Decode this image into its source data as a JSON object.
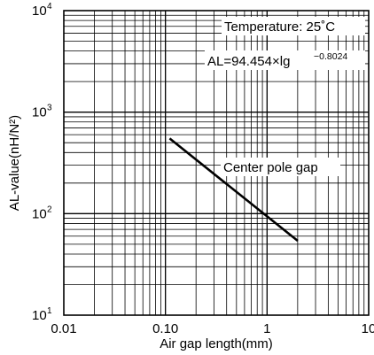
{
  "chart_data": {
    "type": "line",
    "xlabel": "Air gap length(mm)",
    "ylabel": "AL-value(nH/N²)",
    "x_scale": "log",
    "y_scale": "log",
    "xlim": [
      0.01,
      10
    ],
    "ylim": [
      10,
      10000
    ],
    "x_ticks": [
      {
        "value": 0.01,
        "label": "0.01"
      },
      {
        "value": 0.1,
        "label": "0.10"
      },
      {
        "value": 1,
        "label": "1"
      },
      {
        "value": 10,
        "label": "10"
      }
    ],
    "y_ticks": [
      {
        "value": 10,
        "base": "10",
        "exp": "1"
      },
      {
        "value": 100,
        "base": "10",
        "exp": "2"
      },
      {
        "value": 1000,
        "base": "10",
        "exp": "3"
      },
      {
        "value": 10000,
        "base": "10",
        "exp": "4"
      }
    ],
    "grid": true,
    "series": [
      {
        "name": "Center pole gap",
        "color": "#000000",
        "x": [
          0.11,
          2.0
        ],
        "y": [
          550,
          54
        ]
      }
    ],
    "annotations": {
      "temperature": "Temperature: 25˚C",
      "formula_main": "AL=94.454×lg",
      "formula_exp": "−0.8024",
      "series_label": "Center pole gap"
    }
  }
}
